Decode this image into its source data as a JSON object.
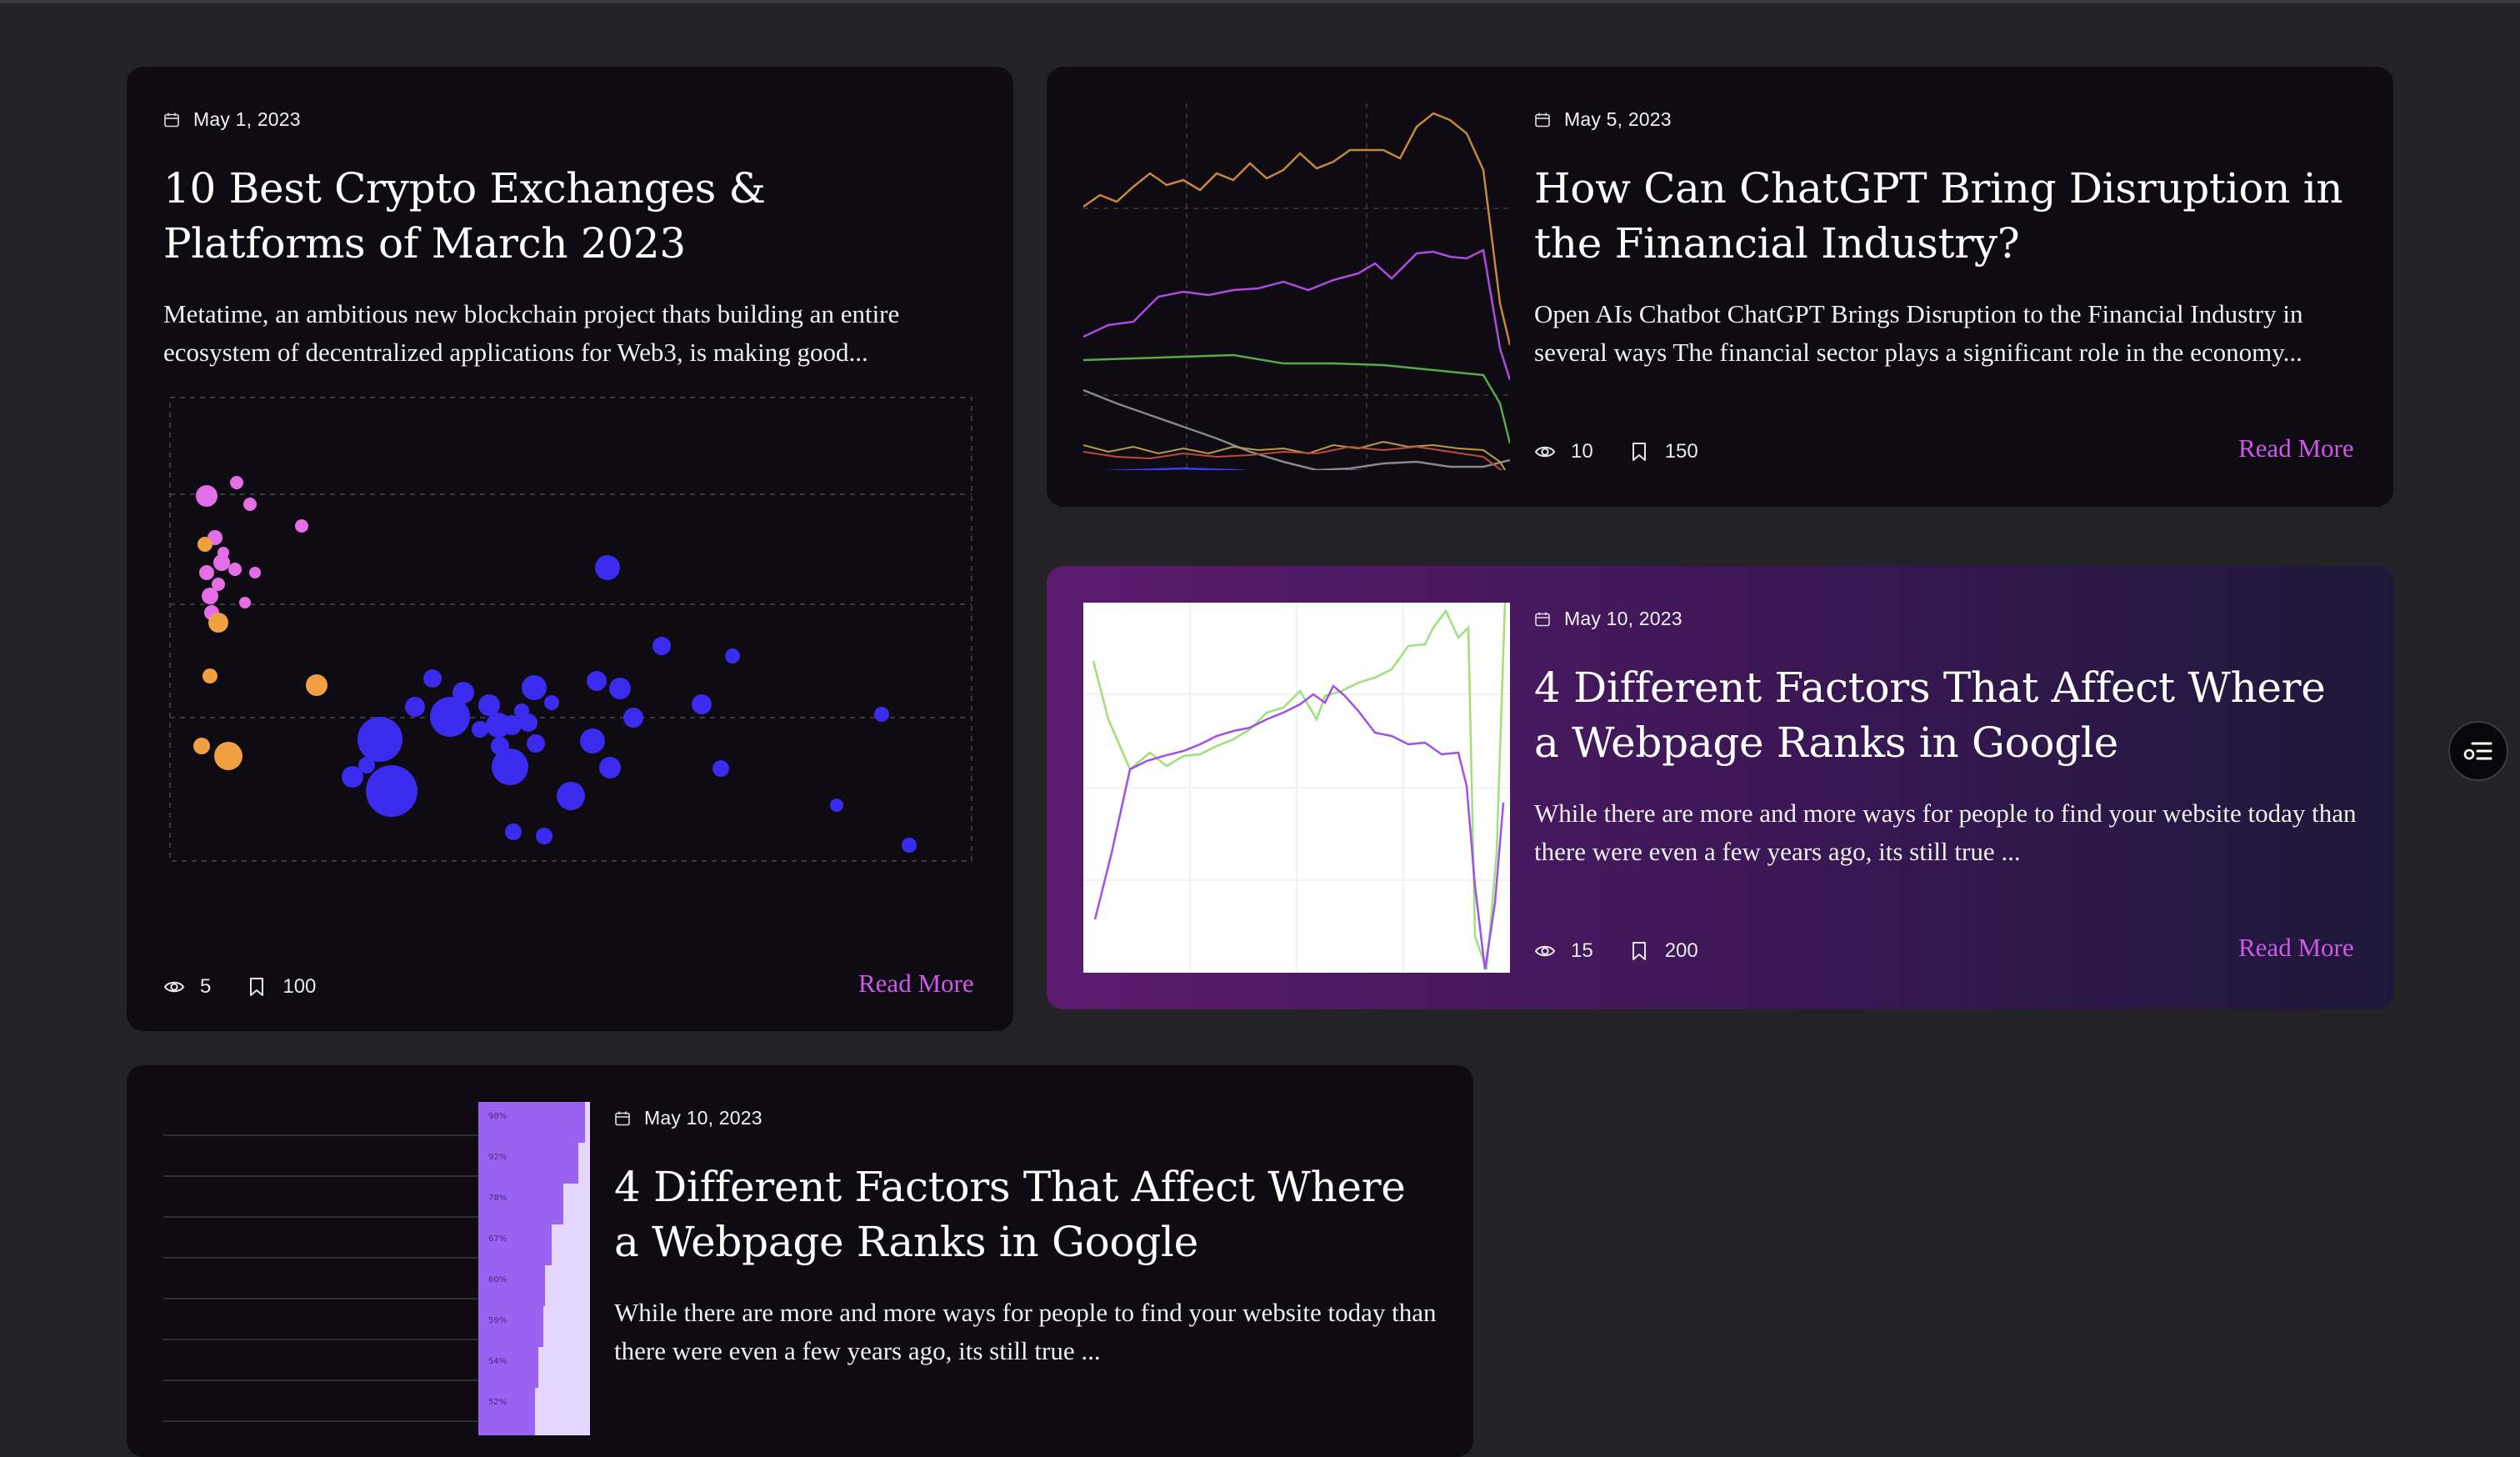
{
  "colors": {
    "background": "#232226",
    "card": "#0e0c12",
    "accent": "#d058e8",
    "featured_gradient": [
      "#5b1a6e",
      "#1d1839"
    ]
  },
  "icons": {
    "date": "calendar-icon",
    "views": "eye-icon",
    "bookmarks": "bookmark-icon",
    "fab": "filter-list-icon"
  },
  "cards": [
    {
      "date": "May 1, 2023",
      "title": "10 Best Crypto Exchanges & Platforms of March 2023",
      "excerpt": "Metatime, an ambitious new blockchain project thats building an entire ecosystem of decentralized applications for Web3, is making good...",
      "views": "5",
      "bookmarks": "100",
      "read_more": "Read More",
      "chart": "scatter-bubble"
    },
    {
      "date": "May 5, 2023",
      "title": "How Can ChatGPT Bring Disruption in the Financial Industry?",
      "excerpt": "Open AIs Chatbot ChatGPT Brings Disruption to the Financial Industry in several ways The financial sector plays a significant role in the economy...",
      "views": "10",
      "bookmarks": "150",
      "read_more": "Read More",
      "chart": "multi-line"
    },
    {
      "date": "May 10, 2023",
      "title": "4 Different Factors That Affect Where a Webpage Ranks in Google",
      "excerpt": "While there are more and more ways for people to find your website today than there were even a few years ago, its still true ...",
      "views": "15",
      "bookmarks": "200",
      "read_more": "Read More",
      "chart": "two-line-white"
    },
    {
      "date": "May 10, 2023",
      "title": "4 Different Factors That Affect Where a Webpage Ranks in Google",
      "excerpt": "While there are more and more ways for people to find your website today than there were even a few years ago, its still true ...",
      "chart": "funnel-bars",
      "bar_labels": [
        "98%",
        "92%",
        "78%",
        "67%",
        "60%",
        "59%",
        "54%",
        "52%"
      ]
    }
  ]
}
